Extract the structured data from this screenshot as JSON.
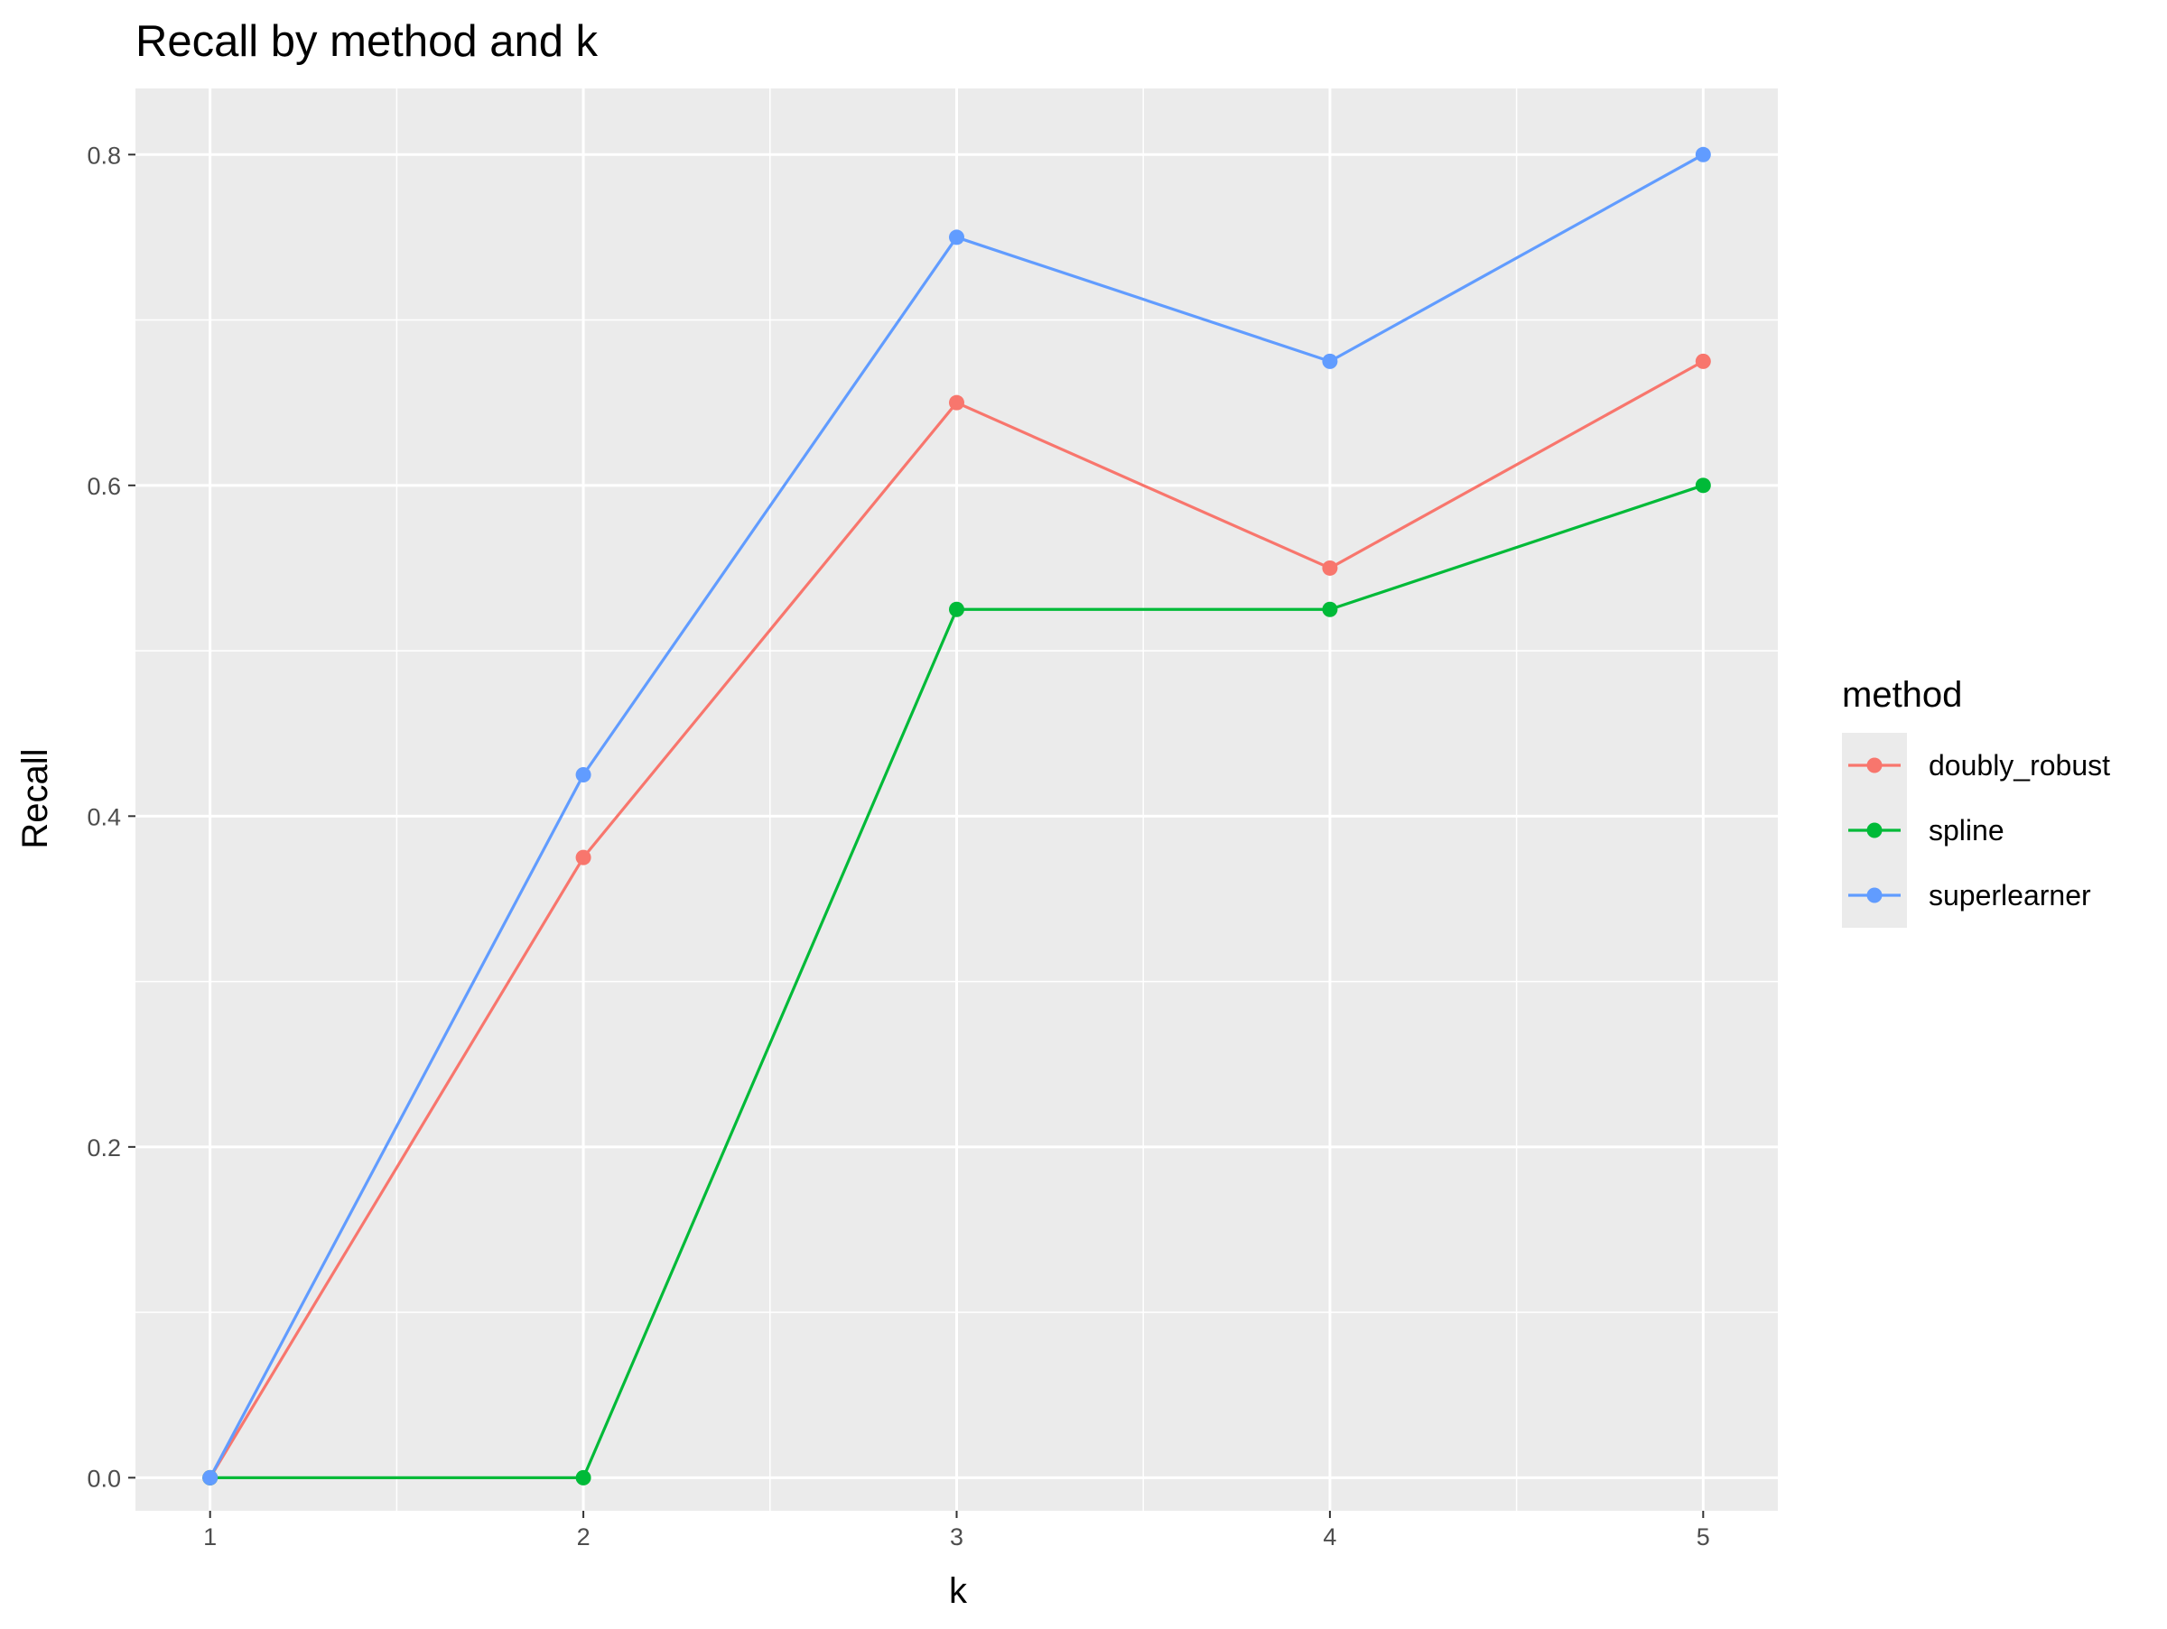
{
  "chart_data": {
    "type": "line",
    "title": "Recall by method and k",
    "xlabel": "k",
    "ylabel": "Recall",
    "x": [
      1,
      2,
      3,
      4,
      5
    ],
    "xlim": [
      0.8,
      5.2
    ],
    "ylim": [
      -0.02,
      0.84
    ],
    "x_ticks": [
      1,
      2,
      3,
      4,
      5
    ],
    "y_ticks": [
      0.0,
      0.2,
      0.4,
      0.6,
      0.8
    ],
    "y_tick_labels": [
      "0.0",
      "0.2",
      "0.4",
      "0.6",
      "0.8"
    ],
    "grid": true,
    "panel_background": "#ebebeb",
    "gridline_color": "#ffffff",
    "legend": {
      "title": "method",
      "position": "right"
    },
    "series": [
      {
        "name": "doubly_robust",
        "color": "#f8766d",
        "values": [
          0.0,
          0.375,
          0.65,
          0.55,
          0.675
        ]
      },
      {
        "name": "spline",
        "color": "#00ba38",
        "values": [
          0.0,
          0.0,
          0.525,
          0.525,
          0.6
        ]
      },
      {
        "name": "superlearner",
        "color": "#619cff",
        "values": [
          0.0,
          0.425,
          0.75,
          0.675,
          0.8
        ]
      }
    ]
  }
}
